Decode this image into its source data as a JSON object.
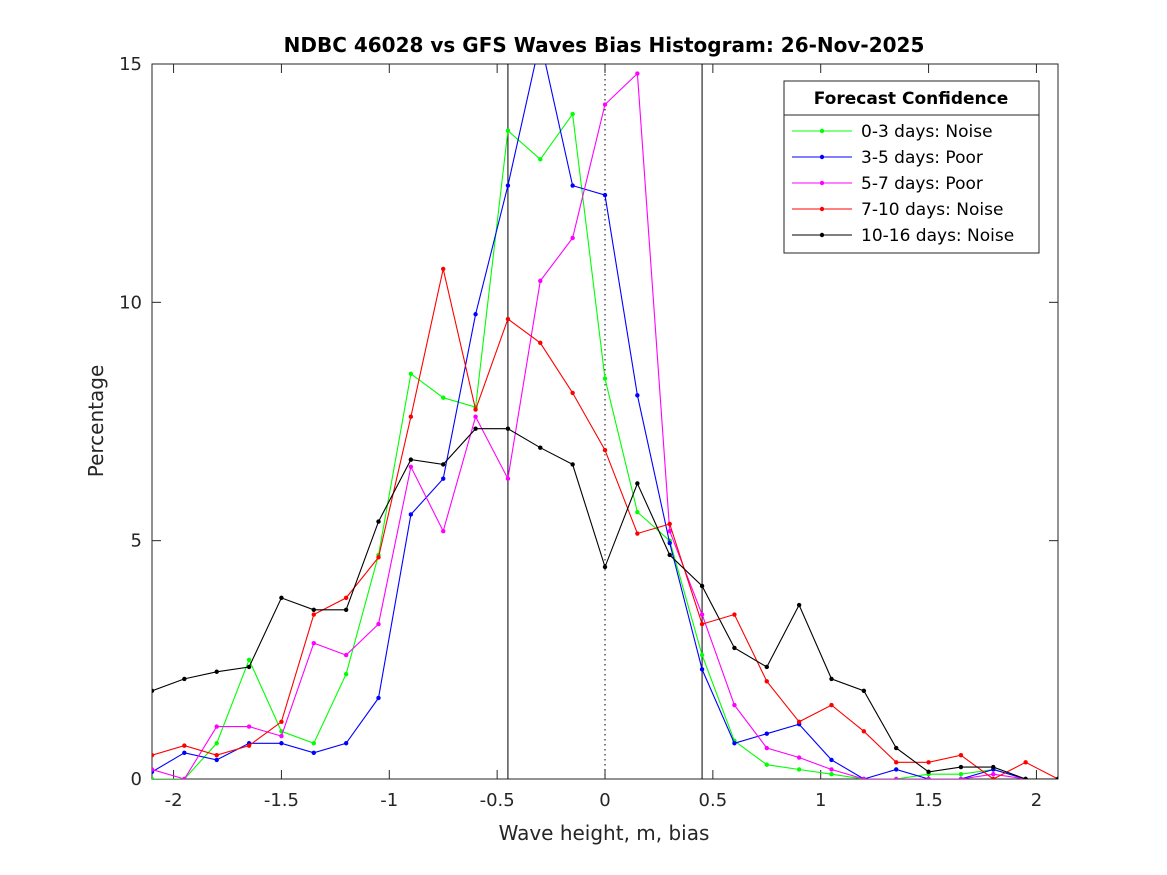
{
  "chart_data": {
    "type": "line",
    "title": "NDBC 46028 vs GFS Waves Bias Histogram: 26-Nov-2025",
    "xlabel": "Wave height, m, bias",
    "ylabel": "Percentage",
    "xlim": [
      -2.1,
      2.1
    ],
    "ylim": [
      0,
      15
    ],
    "xticks": [
      -2,
      -1.5,
      -1,
      -0.5,
      0,
      0.5,
      1,
      1.5,
      2
    ],
    "xtick_labels": [
      "-2",
      "-1.5",
      "-1",
      "-0.5",
      "0",
      "0.5",
      "1",
      "1.5",
      "2"
    ],
    "yticks": [
      0,
      5,
      10,
      15
    ],
    "ytick_labels": [
      "0",
      "5",
      "10",
      "15"
    ],
    "vertical_lines": [
      {
        "x": -0.45,
        "style": "solid"
      },
      {
        "x": 0,
        "style": "dotted"
      },
      {
        "x": 0.45,
        "style": "solid"
      }
    ],
    "legend": {
      "title": "Forecast Confidence",
      "location": "top-right"
    },
    "x": [
      -2.1,
      -1.95,
      -1.8,
      -1.65,
      -1.5,
      -1.35,
      -1.2,
      -1.05,
      -0.9,
      -0.75,
      -0.6,
      -0.45,
      -0.3,
      -0.15,
      0,
      0.15,
      0.3,
      0.45,
      0.6,
      0.75,
      0.9,
      1.05,
      1.2,
      1.35,
      1.5,
      1.65,
      1.8,
      1.95,
      2.1
    ],
    "series": [
      {
        "name": "0-3 days: Noise",
        "color": "#00ff00",
        "values": [
          0,
          0,
          0.75,
          2.5,
          1.0,
          0.75,
          2.2,
          4.7,
          8.5,
          8.0,
          7.8,
          13.6,
          13.0,
          13.95,
          8.4,
          5.6,
          5.0,
          2.6,
          0.8,
          0.3,
          0.2,
          0.1,
          0,
          0,
          0.1,
          0.1,
          0.2,
          0,
          0
        ]
      },
      {
        "name": "3-5 days: Poor",
        "color": "#0000ff",
        "values": [
          0.15,
          0.55,
          0.4,
          0.75,
          0.75,
          0.55,
          0.75,
          1.7,
          5.55,
          6.3,
          9.75,
          12.45,
          15.5,
          12.45,
          12.25,
          8.05,
          4.95,
          2.3,
          0.75,
          0.95,
          1.15,
          0.4,
          0,
          0.2,
          0,
          0,
          0.2,
          0,
          0
        ]
      },
      {
        "name": "5-7 days: Poor",
        "color": "#ff00ff",
        "values": [
          0.2,
          0,
          1.1,
          1.1,
          0.9,
          2.85,
          2.6,
          3.25,
          6.55,
          5.2,
          7.6,
          6.3,
          10.45,
          11.35,
          14.15,
          14.8,
          5.2,
          3.45,
          1.55,
          0.65,
          0.45,
          0.2,
          0,
          0,
          0,
          0,
          0.1,
          0,
          0
        ]
      },
      {
        "name": "7-10 days: Noise",
        "color": "#ff0000",
        "values": [
          0.5,
          0.7,
          0.5,
          0.7,
          1.2,
          3.45,
          3.8,
          4.65,
          7.6,
          10.7,
          7.75,
          9.65,
          9.15,
          8.1,
          6.9,
          5.15,
          5.35,
          3.25,
          3.45,
          2.05,
          1.2,
          1.55,
          1.0,
          0.35,
          0.35,
          0.5,
          0,
          0.35,
          0
        ]
      },
      {
        "name": "10-16 days: Noise",
        "color": "#000000",
        "values": [
          1.85,
          2.1,
          2.25,
          2.35,
          3.8,
          3.55,
          3.55,
          5.4,
          6.7,
          6.6,
          7.35,
          7.35,
          6.95,
          6.6,
          4.45,
          6.2,
          4.7,
          4.05,
          2.75,
          2.35,
          3.65,
          2.1,
          1.85,
          0.65,
          0.15,
          0.25,
          0.25,
          0,
          0
        ]
      }
    ]
  }
}
